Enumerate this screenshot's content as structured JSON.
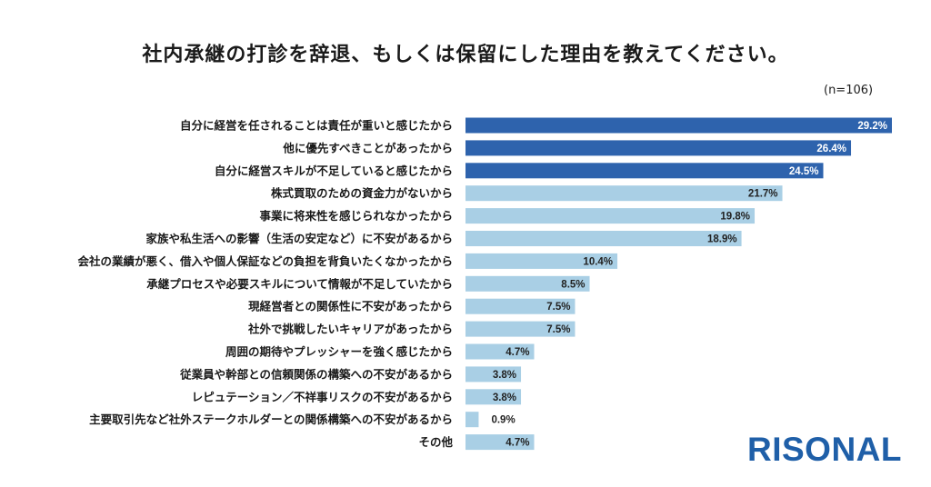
{
  "chart_data": {
    "type": "bar",
    "orientation": "horizontal",
    "title": "社内承継の打診を辞退、もしくは保留にした理由を教えてください。",
    "sample_size": "(n=106)",
    "categories": [
      "自分に経営を任されることは責任が重いと感じたから",
      "他に優先すべきことがあったから",
      "自分に経営スキルが不足していると感じたから",
      "株式買取のための資金力がないから",
      "事業に将来性を感じられなかったから",
      "家族や私生活への影響（生活の安定など）に不安があるから",
      "会社の業績が悪く、借入や個人保証などの負担を背負いたくなかったから",
      "承継プロセスや必要スキルについて情報が不足していたから",
      "現経営者との関係性に不安があったから",
      "社外で挑戦したいキャリアがあったから",
      "周囲の期待やプレッシャーを強く感じたから",
      "従業員や幹部との信頼関係の構築への不安があるから",
      "レピュテーション／不祥事リスクの不安があるから",
      "主要取引先など社外ステークホルダーとの関係構築への不安があるから",
      "その他"
    ],
    "values": [
      29.2,
      26.4,
      24.5,
      21.7,
      19.8,
      18.9,
      10.4,
      8.5,
      7.5,
      7.5,
      4.7,
      3.8,
      3.8,
      0.9,
      4.7
    ],
    "value_labels": [
      "29.2%",
      "26.4%",
      "24.5%",
      "21.7%",
      "19.8%",
      "18.9%",
      "10.4%",
      "8.5%",
      "7.5%",
      "7.5%",
      "4.7%",
      "3.8%",
      "3.8%",
      "0.9%",
      "4.7%"
    ],
    "highlight_top_n": 3,
    "colors": {
      "highlight": "#2e63ad",
      "normal": "#a9cfe5",
      "label_text_on_dark": "#ffffff",
      "label_text_on_light": "#222222"
    },
    "xlim": [
      0,
      29.2
    ],
    "grid": false,
    "legend": "none"
  },
  "brand": {
    "logo_text": "RISONAL"
  }
}
